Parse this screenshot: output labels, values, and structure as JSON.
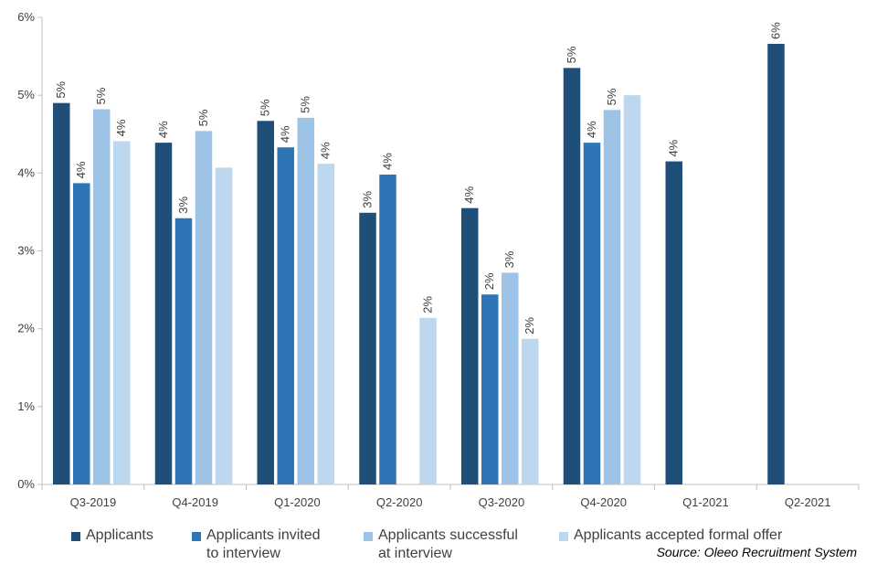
{
  "chart_data": {
    "type": "bar",
    "categories": [
      "Q3-2019",
      "Q4-2019",
      "Q1-2020",
      "Q2-2020",
      "Q3-2020",
      "Q4-2020",
      "Q1-2021",
      "Q2-2021"
    ],
    "ylim": [
      0,
      6
    ],
    "yticks": [
      "0%",
      "1%",
      "2%",
      "3%",
      "4%",
      "5%",
      "6%"
    ],
    "series": [
      {
        "name": "Applicants",
        "legend": [
          "Applicants"
        ],
        "color": "#1f4e79",
        "values": [
          4.9,
          4.39,
          4.67,
          3.49,
          3.55,
          5.35,
          4.15,
          5.66
        ],
        "labels": [
          "5%",
          "4%",
          "5%",
          "3%",
          "4%",
          "5%",
          "4%",
          "6%"
        ]
      },
      {
        "name": "Applicants invited to interview",
        "legend": [
          "Applicants invited",
          "to interview"
        ],
        "color": "#2e75b6",
        "values": [
          3.87,
          3.42,
          4.33,
          3.98,
          2.44,
          4.39,
          null,
          null
        ],
        "labels": [
          "4%",
          "3%",
          "4%",
          "4%",
          "2%",
          "4%",
          null,
          null
        ]
      },
      {
        "name": "Applicants successful at interview",
        "legend": [
          "Applicants successful",
          "at interview"
        ],
        "color": "#9dc3e6",
        "values": [
          4.82,
          4.54,
          4.71,
          null,
          2.72,
          4.81,
          null,
          null
        ],
        "labels": [
          "5%",
          "5%",
          "5%",
          null,
          "3%",
          "5%",
          null,
          null
        ]
      },
      {
        "name": "Applicants accepted formal offer",
        "legend": [
          "Applicants accepted formal offer"
        ],
        "color": "#bdd7ee",
        "values": [
          4.41,
          4.07,
          4.12,
          2.14,
          1.87,
          5.0,
          null,
          null
        ],
        "labels": [
          "4%",
          null,
          "4%",
          "2%",
          "2%",
          null,
          null,
          null
        ]
      }
    ],
    "title": "",
    "xlabel": "",
    "ylabel": ""
  },
  "source": "Source: Oleeo Recruitment System"
}
